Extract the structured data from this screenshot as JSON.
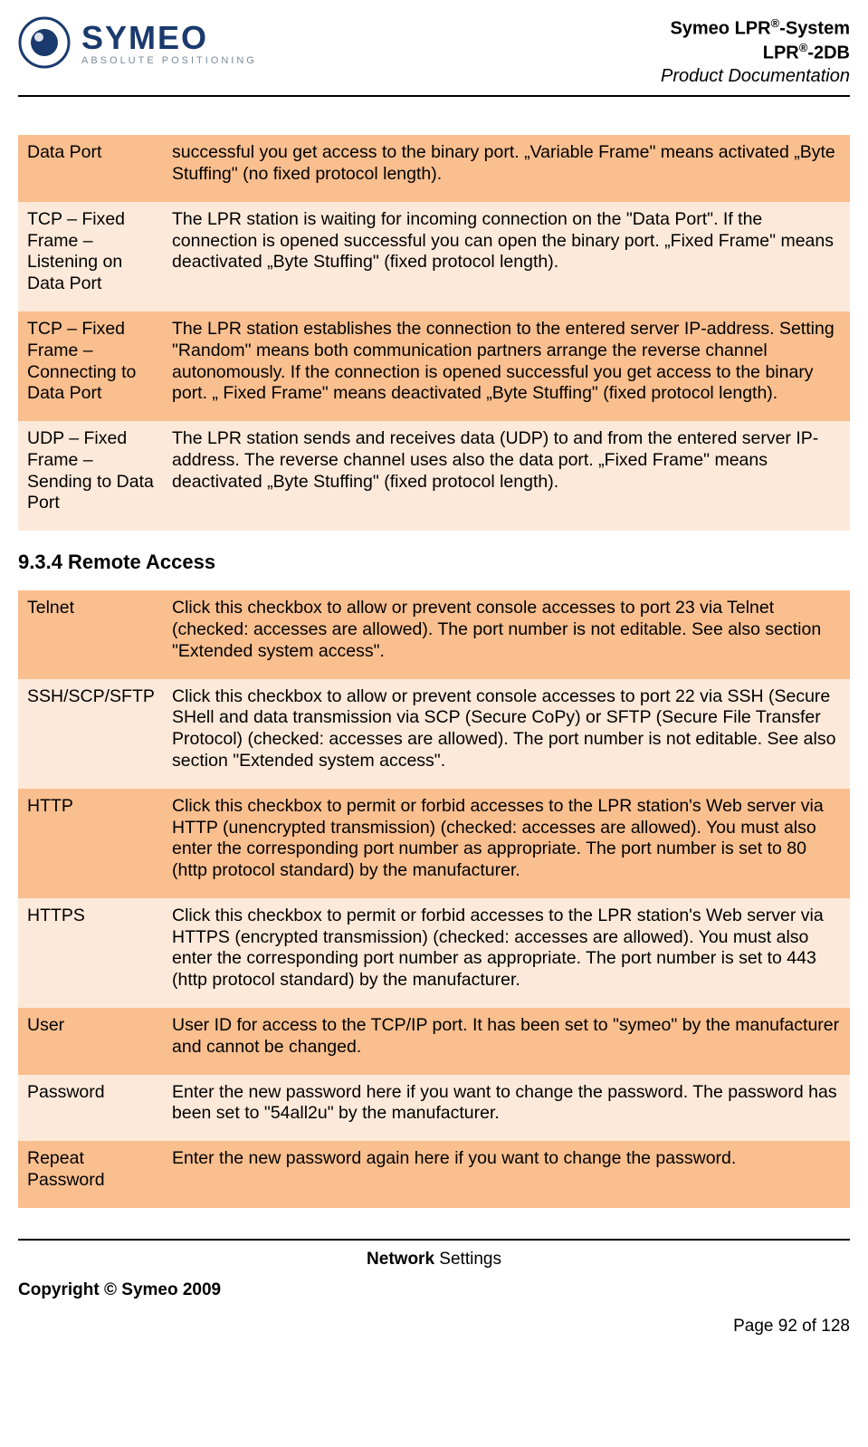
{
  "header": {
    "brand_main": "SYMEO",
    "brand_tag": "ABSOLUTE POSITIONING",
    "line1_pre": "Symeo LPR",
    "line1_suf": "-System",
    "line2_pre": "LPR",
    "line2_suf": "-2DB",
    "line3": "Product Documentation",
    "reg": "®",
    "logo_outer": "#1a3a6e",
    "logo_inner": "#1a3a6e",
    "brand_color": "#1a3a6e",
    "tag_color": "#7a8a9a"
  },
  "colors": {
    "row_dark": "#fabf8f",
    "row_light": "#fde9d9",
    "text": "#000000",
    "rule": "#000000"
  },
  "table1": {
    "rows": [
      {
        "shade": "dark",
        "label": "Data Port",
        "desc": "successful you get access to the binary port. „Variable Frame\" means activated „Byte Stuffing\" (no fixed protocol length)."
      },
      {
        "shade": "light",
        "label": "TCP – Fixed Frame – Listening on Data Port",
        "desc": "The LPR station is waiting for incoming connection on the \"Data Port\". If the connection is opened successful you can open the binary port. „Fixed Frame\" means deactivated „Byte Stuffing\" (fixed protocol length)."
      },
      {
        "shade": "dark",
        "label": "TCP – Fixed Frame – Connecting to Data Port",
        "desc": "The LPR station establishes the connection to the entered server IP-address. Setting \"Random\" means both communication partners arrange the reverse channel autonomously. If the connection is opened successful you get access to the binary port. „ Fixed Frame\" means deactivated „Byte Stuffing\" (fixed protocol length)."
      },
      {
        "shade": "light",
        "label": "UDP – Fixed Frame – Sending to Data Port",
        "desc": "The LPR station sends and receives data (UDP) to and from the entered server IP-address. The reverse channel uses also the data port. „Fixed Frame\" means deactivated „Byte Stuffing\" (fixed protocol length)."
      }
    ]
  },
  "section_heading": "9.3.4    Remote Access",
  "table2": {
    "rows": [
      {
        "shade": "dark",
        "label": "Telnet",
        "desc": "Click this checkbox to allow or prevent console accesses to port 23 via Telnet (checked: accesses are allowed). The port number is not editable. See also section \"Extended system access\"."
      },
      {
        "shade": "light",
        "label": "SSH/SCP/SFTP",
        "desc": "Click this checkbox to allow or prevent console accesses to port 22 via SSH (Secure SHell and data transmission via SCP (Secure CoPy) or SFTP (Secure File Transfer Protocol) (checked: accesses are allowed). The port number is not editable. See also section \"Extended system access\"."
      },
      {
        "shade": "dark",
        "label": "HTTP",
        "desc": "Click this checkbox to permit or forbid accesses to the LPR station's Web server via HTTP (unencrypted transmission) (checked: accesses are allowed). You must also enter the corresponding port number as appropriate. The port number is set to 80 (http protocol standard) by the manufacturer."
      },
      {
        "shade": "light",
        "label": "HTTPS",
        "desc": "Click this checkbox to permit or forbid accesses to the LPR station's Web server via HTTPS (encrypted transmission) (checked: accesses are allowed). You must also enter the corresponding port number as appropriate. The port number is set to 443 (http protocol standard) by the manufacturer."
      },
      {
        "shade": "dark",
        "label": "User",
        "desc": "User ID for access to the TCP/IP port. It has been set to \"symeo\" by the manufacturer and cannot be changed."
      },
      {
        "shade": "light",
        "label": "Password",
        "desc": "Enter the new password here if you want to change the password. The password has been set to \"54all2u\" by the manufacturer."
      },
      {
        "shade": "dark",
        "label": "Repeat Password",
        "desc": "Enter the new password again here if you want to change the password."
      }
    ]
  },
  "footer": {
    "section_bold": "Network",
    "section_rest": " Settings",
    "copyright": "Copyright © Symeo 2009",
    "page": "Page 92 of 128"
  }
}
